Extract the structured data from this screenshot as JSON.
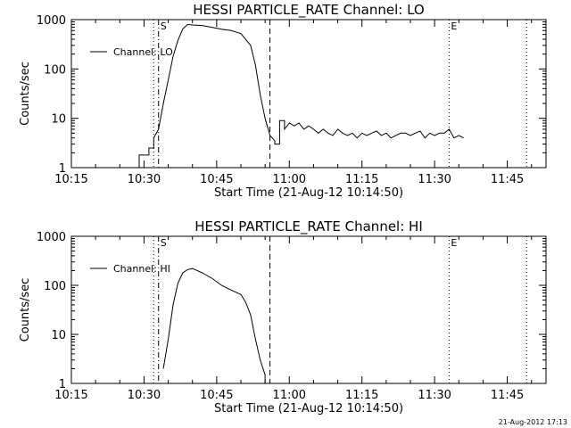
{
  "chart_data": [
    {
      "type": "line",
      "title": "HESSI PARTICLE_RATE Channel: LO",
      "xlabel": "Start Time (21-Aug-12 10:14:50)",
      "ylabel": "Counts/sec",
      "y_scale": "log",
      "ylim": [
        1,
        1000
      ],
      "xlim": [
        "10:15",
        "11:53"
      ],
      "x_ticks": [
        "10:15",
        "10:30",
        "10:45",
        "11:00",
        "11:15",
        "11:30",
        "11:45"
      ],
      "y_ticks": [
        "1",
        "10",
        "100",
        "1000"
      ],
      "legend": {
        "entries": [
          "Channel: LO"
        ],
        "placement": "top-left"
      },
      "markers": {
        "S": "S",
        "E": "E"
      },
      "vlines": [
        {
          "x": "10:32",
          "style": "dotted"
        },
        {
          "x": "10:33",
          "style": "dashdot"
        },
        {
          "x": "10:56",
          "style": "dashed"
        },
        {
          "x": "11:33",
          "style": "dotted"
        },
        {
          "x": "11:49",
          "style": "dotted"
        }
      ],
      "series": [
        {
          "name": "Channel: LO",
          "x": [
            "10:15",
            "10:29",
            "10:29",
            "10:31",
            "10:31",
            "10:32",
            "10:32",
            "10:33",
            "10:34",
            "10:35",
            "10:36",
            "10:37",
            "10:38",
            "10:39",
            "10:40",
            "10:42",
            "10:44",
            "10:46",
            "10:48",
            "10:50",
            "10:52",
            "10:53",
            "10:54",
            "10:55",
            "10:56",
            "10:57",
            "10:57",
            "10:58",
            "10:58",
            "10:59",
            "10:59",
            "11:00",
            "11:01",
            "11:02",
            "11:03",
            "11:04",
            "11:05",
            "11:06",
            "11:07",
            "11:08",
            "11:09",
            "11:10",
            "11:11",
            "11:12",
            "11:13",
            "11:14",
            "11:15",
            "11:16",
            "11:17",
            "11:18",
            "11:19",
            "11:20",
            "11:21",
            "11:22",
            "11:23",
            "11:24",
            "11:25",
            "11:26",
            "11:27",
            "11:28",
            "11:29",
            "11:30",
            "11:31",
            "11:32",
            "11:33",
            "11:34",
            "11:35",
            "11:36"
          ],
          "values": [
            1,
            1,
            1.8,
            1.8,
            2.5,
            2.5,
            4,
            6,
            20,
            60,
            180,
            380,
            650,
            800,
            780,
            760,
            700,
            640,
            600,
            520,
            300,
            120,
            30,
            10,
            4.5,
            3.5,
            3,
            3,
            9,
            9,
            6,
            8,
            7,
            8,
            6,
            7,
            6,
            5,
            6,
            5,
            4.5,
            6,
            5,
            4.5,
            5,
            4,
            5,
            4.5,
            5,
            5.5,
            4.5,
            5,
            4,
            4.5,
            5,
            5,
            4.5,
            5,
            5.5,
            4,
            5,
            4.5,
            5,
            5,
            6,
            4,
            4.5,
            4
          ]
        }
      ]
    },
    {
      "type": "line",
      "title": "HESSI PARTICLE_RATE Channel: HI",
      "xlabel": "Start Time (21-Aug-12 10:14:50)",
      "ylabel": "Counts/sec",
      "y_scale": "log",
      "ylim": [
        1,
        1000
      ],
      "xlim": [
        "10:15",
        "11:53"
      ],
      "x_ticks": [
        "10:15",
        "10:30",
        "10:45",
        "11:00",
        "11:15",
        "11:30",
        "11:45"
      ],
      "y_ticks": [
        "1",
        "10",
        "100",
        "1000"
      ],
      "legend": {
        "entries": [
          "Channel: HI"
        ],
        "placement": "top-left"
      },
      "markers": {
        "S": "S",
        "E": "E"
      },
      "vlines": [
        {
          "x": "10:32",
          "style": "dotted"
        },
        {
          "x": "10:33",
          "style": "dashdot"
        },
        {
          "x": "10:56",
          "style": "dashed"
        },
        {
          "x": "11:33",
          "style": "dotted"
        },
        {
          "x": "11:49",
          "style": "dotted"
        }
      ],
      "series": [
        {
          "name": "Channel: HI",
          "x": [
            "10:34",
            "10:35",
            "10:36",
            "10:37",
            "10:38",
            "10:39",
            "10:40",
            "10:41",
            "10:42",
            "10:44",
            "10:46",
            "10:48",
            "10:50",
            "10:51",
            "10:52",
            "10:53",
            "10:54",
            "10:55",
            "10:55"
          ],
          "values": [
            2,
            8,
            40,
            110,
            180,
            210,
            220,
            200,
            180,
            140,
            100,
            80,
            65,
            45,
            25,
            8,
            3,
            1.5,
            1
          ]
        }
      ]
    }
  ],
  "footer": {
    "timestamp": "21-Aug-2012 17:13"
  }
}
